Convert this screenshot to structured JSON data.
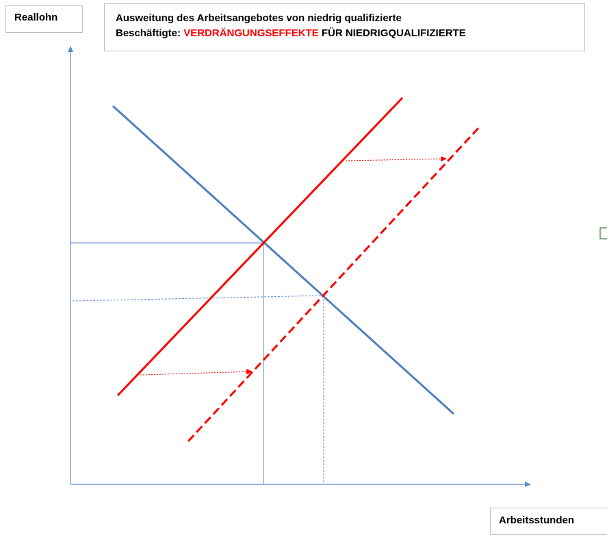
{
  "axes": {
    "y_label": "Reallohn",
    "x_label": "Arbeitsstunden"
  },
  "title": {
    "line1": "Ausweitung des Arbeitsangebotes von niedrig qualifizierte",
    "line2_prefix": "Beschäftigte:",
    "line2_highlight": "VERDRÄNGUNGSEFFEKTE",
    "line2_suffix": "FÜR NIEDRIGQUALIFIZIERTE"
  }
}
